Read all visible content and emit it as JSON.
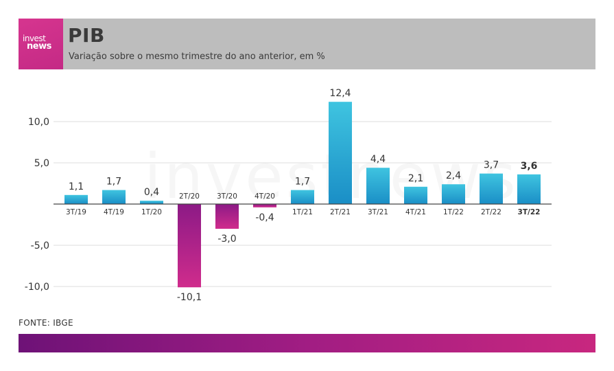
{
  "header": {
    "logo_line1": "invest",
    "logo_line2": "news",
    "title": "PIB",
    "subtitle": "Variação sobre o mesmo trimestre do ano anterior, em %"
  },
  "watermark": "investnews",
  "source": "FONTE: IBGE",
  "colors": {
    "positive_top": "#3fc4e0",
    "positive_bottom": "#1a8ec6",
    "negative_top": "#8c1a86",
    "negative_bottom": "#d02c8c",
    "header_bg": "#bdbdbd",
    "logo_bg": "#c42a85"
  },
  "chart_data": {
    "type": "bar",
    "categories": [
      "3T/19",
      "4T/19",
      "1T/20",
      "2T/20",
      "3T/20",
      "4T/20",
      "1T/21",
      "2T/21",
      "3T/21",
      "4T/21",
      "1T/22",
      "2T/22",
      "3T/22"
    ],
    "values": [
      1.1,
      1.7,
      0.4,
      -10.1,
      -3.0,
      -0.4,
      1.7,
      12.4,
      4.4,
      2.1,
      2.4,
      3.7,
      3.6
    ],
    "value_labels": [
      "1,1",
      "1,7",
      "0,4",
      "-10,1",
      "-3,0",
      "-0,4",
      "1,7",
      "12,4",
      "4,4",
      "2,1",
      "2,4",
      "3,7",
      "3,6"
    ],
    "highlight_index": 12,
    "yticks": [
      10.0,
      5.0,
      -5.0,
      -10.0
    ],
    "ytick_labels": [
      "10,0",
      "5,0",
      "-5,0",
      "-10,0"
    ],
    "ylim": [
      -10.1,
      12.4
    ],
    "grid": true,
    "title": "PIB",
    "subtitle": "Variação sobre o mesmo trimestre do ano anterior, em %"
  }
}
